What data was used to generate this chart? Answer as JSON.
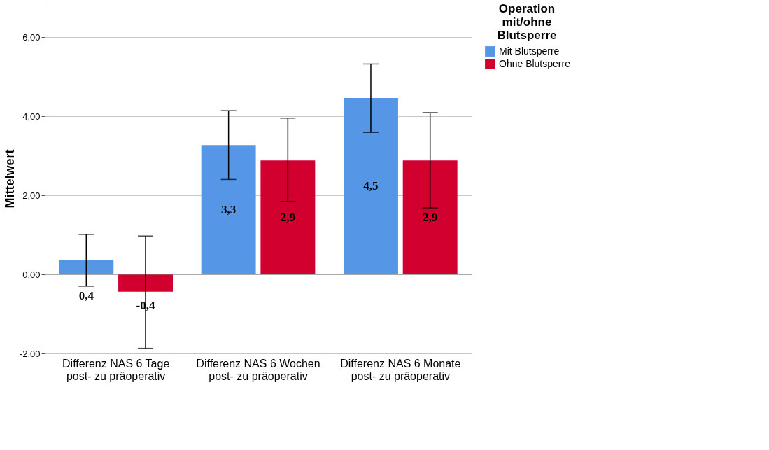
{
  "chart_data": {
    "type": "bar",
    "ylabel": "Mittelwert",
    "legend_title": "Operation mit/ohne Blutsperre",
    "categories": [
      "Differenz NAS 6 Tage post- zu präoperativ",
      "Differenz NAS 6 Wochen post- zu präoperativ",
      "Differenz NAS 6 Monate post- zu präoperativ"
    ],
    "series": [
      {
        "name": "Mit Blutsperre",
        "color": "#5596e6",
        "values": [
          0.37,
          3.27,
          4.46
        ],
        "value_labels": [
          "0,4",
          "3,3",
          "4,5"
        ],
        "errors": [
          [
            -0.3,
            1.01
          ],
          [
            2.4,
            4.14
          ],
          [
            3.59,
            5.32
          ]
        ]
      },
      {
        "name": "Ohne Blutsperre",
        "color": "#d2002f",
        "values": [
          -0.44,
          2.88,
          2.88
        ],
        "value_labels": [
          "-0,4",
          "2,9",
          "2,9"
        ],
        "errors": [
          [
            -1.87,
            0.97
          ],
          [
            1.84,
            3.95
          ],
          [
            1.68,
            4.09
          ]
        ]
      }
    ],
    "ylim": [
      -2,
      6.85
    ],
    "yticks": [
      {
        "value": -2,
        "label": "-2,00"
      },
      {
        "value": 0,
        "label": "0,00"
      },
      {
        "value": 2,
        "label": "2,00"
      },
      {
        "value": 4,
        "label": "4,00"
      },
      {
        "value": 6,
        "label": "6,00"
      }
    ],
    "grid": "y",
    "legend": "top right"
  }
}
